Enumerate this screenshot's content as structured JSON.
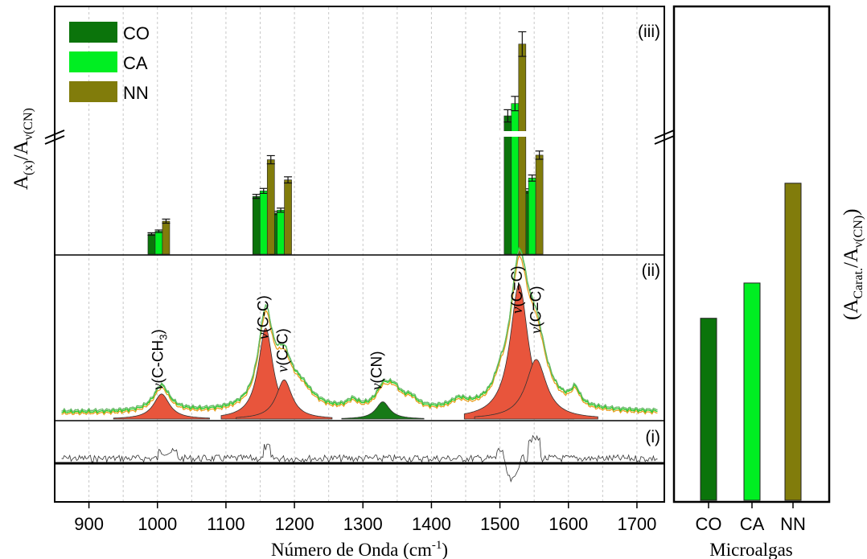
{
  "chart_data": [
    {
      "type": "bar",
      "panel": "(iii)",
      "ylabel_main": "A",
      "ylabel_sub1": "(x)",
      "ylabel_mid": "/A",
      "ylabel_sub2": "ν(CN)",
      "xlim": [
        850,
        1740
      ],
      "xticks": [
        900,
        1000,
        1100,
        1200,
        1300,
        1400,
        1500,
        1600,
        1700
      ],
      "xlabel": "Número de Onda (cm",
      "xlabel_sup": "-1",
      "xlabel_end": ")",
      "legend_position": "top-left",
      "series": [
        {
          "name": "CO",
          "color": "#0b740b",
          "points": [
            {
              "x": 1002,
              "y": 0.11
            },
            {
              "x": 1155,
              "y": 0.315
            },
            {
              "x": 1180,
              "y": 0.225
            },
            {
              "x": 1522,
              "y": 0.74
            },
            {
              "x": 1547,
              "y": 0.345
            }
          ],
          "errors": [
            0.006,
            0.01,
            0.008,
            0.03,
            0.01
          ]
        },
        {
          "name": "CA",
          "color": "#00ee22",
          "points": [
            {
              "x": 1002,
              "y": 0.125
            },
            {
              "x": 1155,
              "y": 0.345
            },
            {
              "x": 1180,
              "y": 0.24
            },
            {
              "x": 1522,
              "y": 0.8
            },
            {
              "x": 1547,
              "y": 0.415
            }
          ],
          "errors": [
            0.006,
            0.012,
            0.01,
            0.035,
            0.015
          ]
        },
        {
          "name": "NN",
          "color": "#817c0b",
          "points": [
            {
              "x": 1002,
              "y": 0.18
            },
            {
              "x": 1155,
              "y": 0.515
            },
            {
              "x": 1180,
              "y": 0.405
            },
            {
              "x": 1522,
              "y": 1.09
            },
            {
              "x": 1547,
              "y": 0.54
            }
          ],
          "errors": [
            0.01,
            0.02,
            0.015,
            0.06,
            0.02
          ]
        }
      ]
    },
    {
      "type": "line",
      "panel": "(ii)",
      "series_colors": [
        "#e8a020",
        "#22cc22",
        "#6ab86a"
      ],
      "fill_peaks": [
        {
          "x": 1006,
          "height": 0.16,
          "width": 14,
          "color": "#e8553c",
          "label_main": "v(C-CH",
          "label_sub": "3",
          "label_end": ")"
        },
        {
          "x": 1158,
          "height": 0.58,
          "width": 13,
          "color": "#e8553c",
          "label_main": "v(C-C)",
          "label_sub": "",
          "label_end": ""
        },
        {
          "x": 1185,
          "height": 0.25,
          "width": 14,
          "color": "#e8553c",
          "label_main": "v(C-C)",
          "label_sub": "",
          "label_end": ""
        },
        {
          "x": 1329,
          "height": 0.11,
          "width": 12,
          "color": "#177a17",
          "label_main": "v(CN)",
          "label_sub": "",
          "label_end": ""
        },
        {
          "x": 1528,
          "height": 0.86,
          "width": 16,
          "color": "#e8553c",
          "label_main": "v(C=C)",
          "label_sub": "",
          "label_end": ""
        },
        {
          "x": 1553,
          "height": 0.38,
          "width": 18,
          "color": "#e8553c",
          "label_main": "v(C=C)",
          "label_sub": "",
          "label_end": ""
        }
      ]
    },
    {
      "type": "line",
      "panel": "(i)",
      "series_colors": [
        "#222222"
      ]
    },
    {
      "type": "bar",
      "categories": [
        "CO",
        "CA",
        "NN"
      ],
      "values": [
        0.62,
        0.74,
        1.08
      ],
      "colors": [
        "#0b740b",
        "#00ee22",
        "#817c0b"
      ],
      "ylabel_open": "(A",
      "ylabel_sub1": "Carat.",
      "ylabel_mid": "/A",
      "ylabel_sub2": "ν(CN)",
      "ylabel_close": ")",
      "xlabel": "Microalgas",
      "ylim": [
        0,
        1.4
      ]
    }
  ]
}
